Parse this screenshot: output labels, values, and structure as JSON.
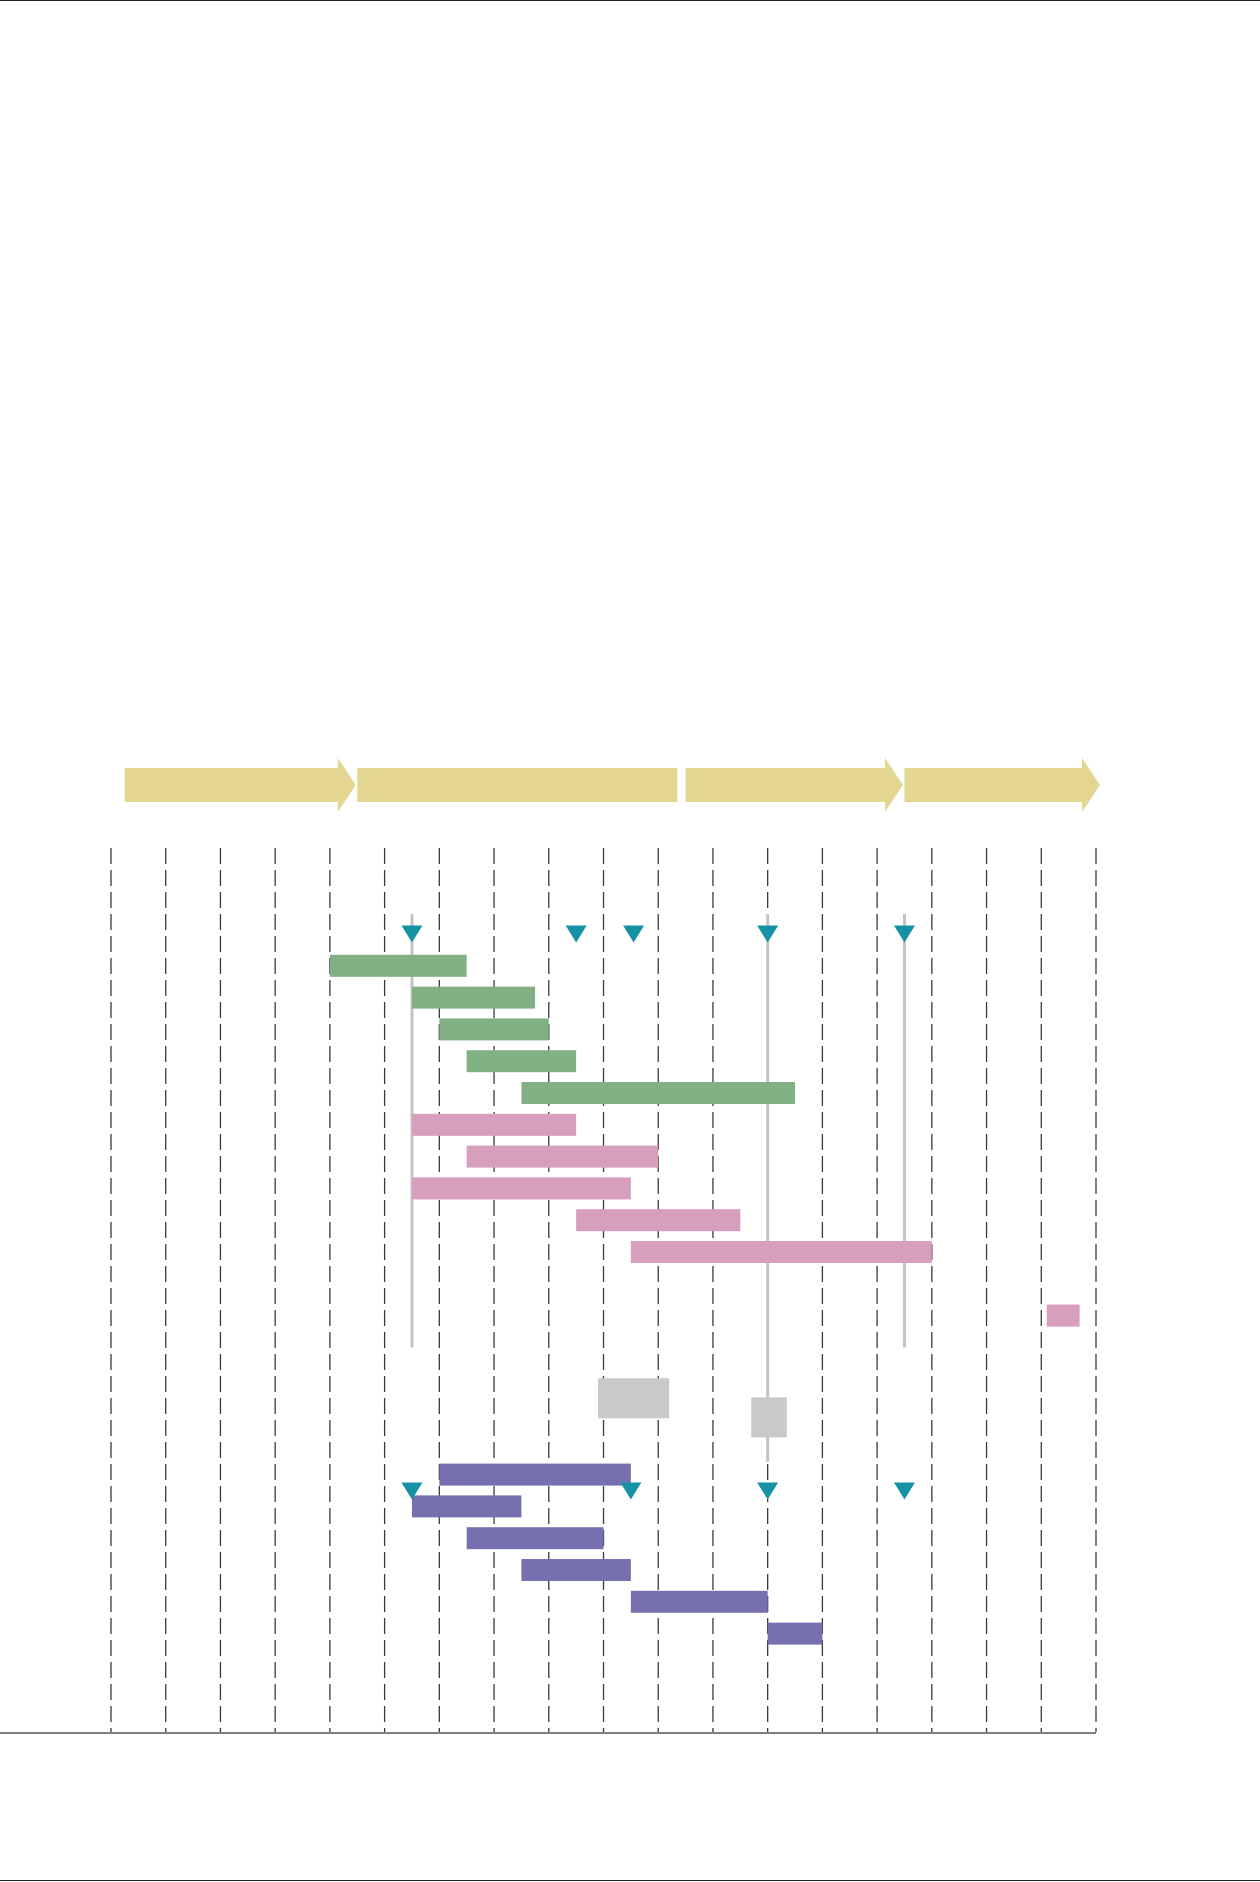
{
  "colors": {
    "phase": "#e2d691",
    "milestone": "#1592a3",
    "guide": "#c4c4c4",
    "gridline": "#3a3a3a",
    "baseline": "#555555",
    "group_a": "#82b085",
    "group_b": "#d89fbd",
    "group_c": "#7670b1",
    "review_block": "#c8c9cb"
  },
  "chart_data": {
    "type": "gantt",
    "x_unit": "column index",
    "xlim": [
      0,
      18
    ],
    "grid_columns": 18,
    "grid": true,
    "phases": [
      {
        "start": 0.25,
        "end": 4.4,
        "arrow": true
      },
      {
        "start": 4.5,
        "end": 10.35,
        "arrow": false
      },
      {
        "start": 10.5,
        "end": 14.4,
        "arrow": true
      },
      {
        "start": 14.5,
        "end": 17.0,
        "arrow": false
      },
      {
        "start": 17.0,
        "end": 18.0,
        "arrow": true
      }
    ],
    "milestones_top": [
      5.5,
      8.5,
      9.55,
      12.0,
      14.5
    ],
    "milestones_bottom": [
      5.5,
      9.5,
      12.0,
      14.5
    ],
    "guide_lines": [
      {
        "x": 5.5,
        "row_from": 0,
        "row_to": 13
      },
      {
        "x": 12.0,
        "row_from": 0,
        "row_to": 16.6
      },
      {
        "x": 14.5,
        "row_from": 0,
        "row_to": 13
      }
    ],
    "review_blocks": [
      {
        "start": 8.9,
        "end": 10.2,
        "row": 14.6
      },
      {
        "start": 11.7,
        "end": 12.35,
        "row": 15.2
      }
    ],
    "groups": [
      {
        "color_key": "group_a",
        "tasks": [
          {
            "start": 4.0,
            "end": 6.5,
            "row": 1
          },
          {
            "start": 5.5,
            "end": 7.75,
            "row": 2
          },
          {
            "start": 6.0,
            "end": 8.0,
            "row": 3
          },
          {
            "start": 6.5,
            "end": 8.5,
            "row": 4
          },
          {
            "start": 7.5,
            "end": 12.5,
            "row": 5
          }
        ]
      },
      {
        "color_key": "group_b",
        "tasks": [
          {
            "start": 5.5,
            "end": 8.5,
            "row": 6
          },
          {
            "start": 6.5,
            "end": 10.0,
            "row": 7
          },
          {
            "start": 5.5,
            "end": 9.5,
            "row": 8
          },
          {
            "start": 8.5,
            "end": 11.5,
            "row": 9
          },
          {
            "start": 9.5,
            "end": 15.0,
            "row": 10
          },
          {
            "start": 17.1,
            "end": 17.7,
            "row": 12
          }
        ]
      },
      {
        "color_key": "group_c",
        "tasks": [
          {
            "start": 6.0,
            "end": 9.5,
            "row": 17
          },
          {
            "start": 5.5,
            "end": 7.5,
            "row": 18
          },
          {
            "start": 6.5,
            "end": 9.0,
            "row": 19
          },
          {
            "start": 7.5,
            "end": 9.5,
            "row": 20
          },
          {
            "start": 9.5,
            "end": 12.0,
            "row": 21
          },
          {
            "start": 12.0,
            "end": 13.0,
            "row": 22
          }
        ]
      }
    ]
  }
}
